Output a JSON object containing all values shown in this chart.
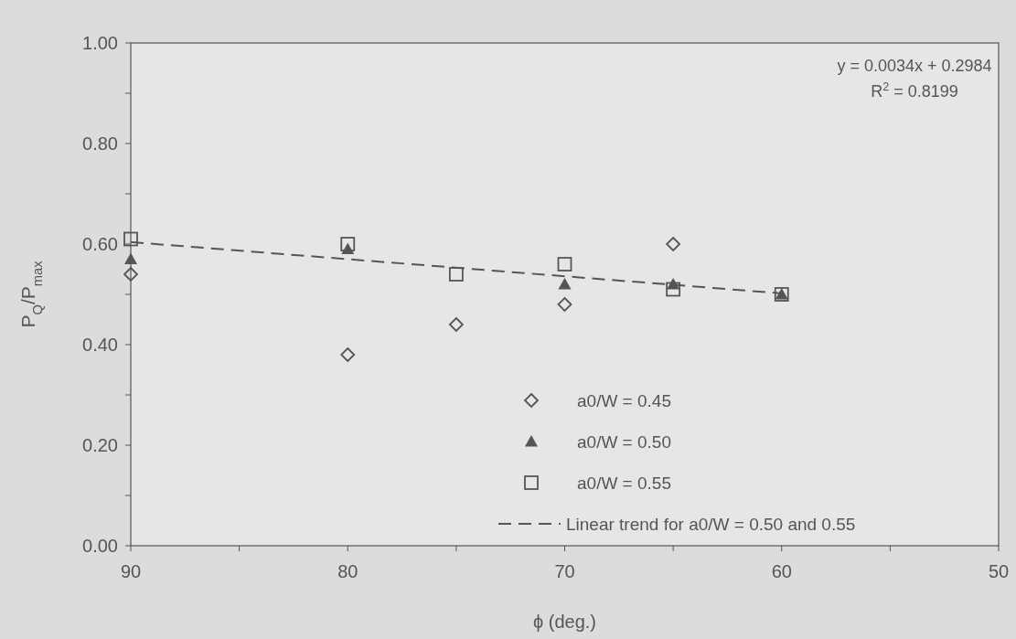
{
  "chart_data": {
    "type": "scatter",
    "xlabel": "ϕ (deg.)",
    "ylabel": "P$_{Q}$/P$_{max}$",
    "xlim": [
      90,
      50
    ],
    "xticks": [
      90,
      {
        "value": 85,
        "label": null
      },
      80,
      {
        "value": 75,
        "label": null
      },
      70,
      {
        "value": 65,
        "label": null
      },
      60,
      {
        "value": 55,
        "label": null
      },
      50
    ],
    "ylim": [
      0,
      1
    ],
    "yticks": [
      {
        "value": 0,
        "label": "0.00"
      },
      {
        "value": 0.1,
        "label": null
      },
      {
        "value": 0.2,
        "label": "0.20"
      },
      {
        "value": 0.3,
        "label": null
      },
      {
        "value": 0.4,
        "label": "0.40"
      },
      {
        "value": 0.5,
        "label": null
      },
      {
        "value": 0.6,
        "label": "0.60"
      },
      {
        "value": 0.7,
        "label": null
      },
      {
        "value": 0.8,
        "label": "0.80"
      },
      {
        "value": 0.9,
        "label": null
      },
      {
        "value": 1,
        "label": "1.00"
      }
    ],
    "grid": false,
    "legend": "bottom right",
    "annotations": [
      "y = 0.0034x + 0.2984",
      "R$^{2}$ = 0.8199"
    ],
    "series": [
      {
        "name": "a0/W = 0.45",
        "color": "#555555",
        "marker": "diamond",
        "x": [
          90,
          80,
          75,
          70,
          65
        ],
        "values": [
          0.54,
          0.38,
          0.44,
          0.48,
          0.6
        ]
      },
      {
        "name": "a0/W = 0.50",
        "color": "#555555",
        "marker": "triangle",
        "x": [
          90,
          80,
          70,
          65,
          60
        ],
        "values": [
          0.57,
          0.59,
          0.52,
          0.52,
          0.5
        ]
      },
      {
        "name": "a0/W = 0.55",
        "color": "#555555",
        "marker": "square",
        "x": [
          90,
          80,
          75,
          70,
          65,
          60
        ],
        "values": [
          0.61,
          0.6,
          0.54,
          0.56,
          0.51,
          0.5
        ]
      },
      {
        "name": "Linear trend for a0/W = 0.50 and 0.55",
        "type": "line",
        "color": "#555555",
        "marker": "none",
        "line_style": "dashed",
        "x": [
          90,
          60
        ],
        "values": [
          0.604,
          0.502
        ]
      }
    ]
  }
}
